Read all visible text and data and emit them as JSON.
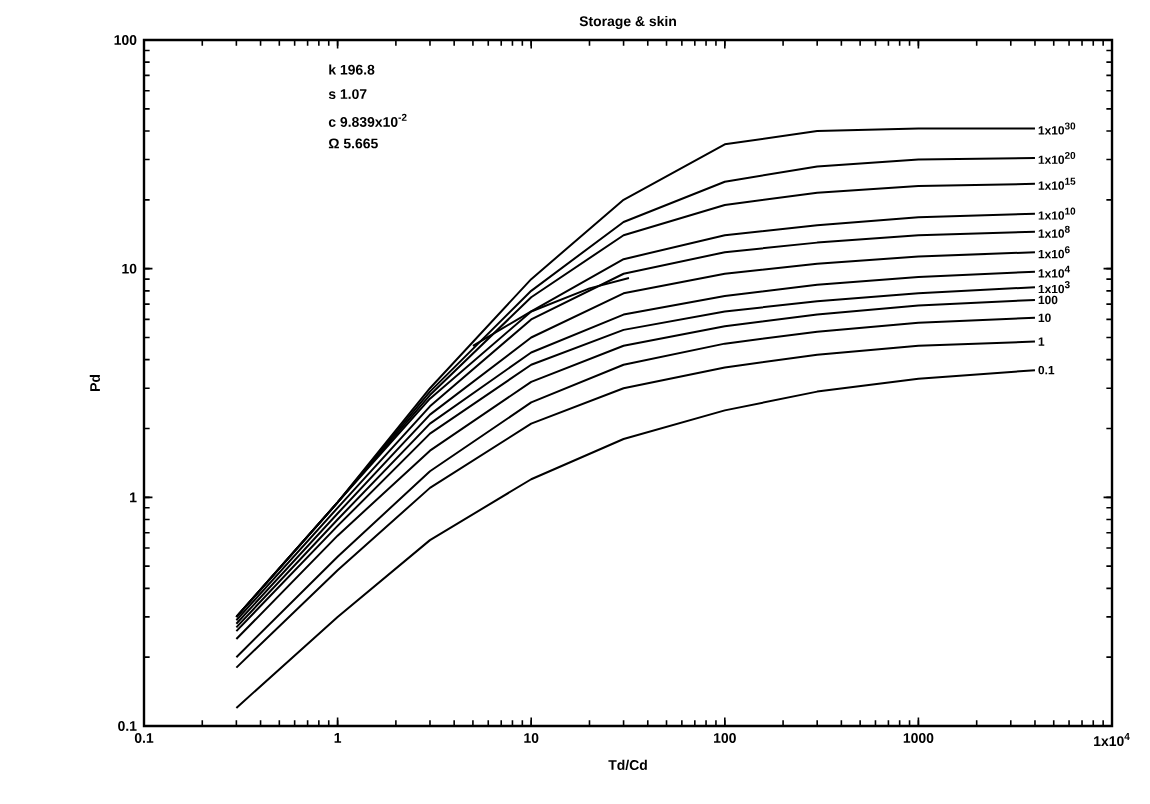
{
  "chart_data": {
    "type": "line",
    "title": "Storage & skin",
    "xlabel": "Td/Cd",
    "ylabel": "Pd",
    "log": "xy",
    "xlim": [
      0.1,
      10000
    ],
    "ylim": [
      0.1,
      100
    ],
    "xticks": [
      0.1,
      1,
      10,
      100,
      1000,
      {
        "value": 10000,
        "label": "1x10$^{4}$"
      }
    ],
    "yticks": [
      0.1,
      1,
      10,
      100
    ],
    "annotations": [
      "k 196.8",
      "s 1.07",
      "c 9.839x10$^{-2}$",
      "Ω 5.665"
    ],
    "legend": false,
    "grid": false,
    "marker": "none",
    "line_style": "solid",
    "x": [
      0.3,
      1,
      3,
      10,
      30,
      100,
      300,
      1000,
      4000
    ],
    "series": [
      {
        "name": "1x10$^{30}$",
        "color": "#000000",
        "values": [
          0.3,
          0.95,
          3,
          9,
          20,
          35,
          40,
          41,
          41
        ]
      },
      {
        "name": "1x10$^{20}$",
        "color": "#000000",
        "values": [
          0.3,
          0.95,
          2.9,
          8,
          16,
          24,
          28,
          30,
          30.5
        ]
      },
      {
        "name": "1x10$^{15}$",
        "color": "#000000",
        "values": [
          0.3,
          0.95,
          2.8,
          7.5,
          14,
          19,
          21.5,
          23,
          23.5
        ]
      },
      {
        "name": "1x10$^{10}$",
        "color": "#000000",
        "values": [
          0.3,
          0.95,
          2.7,
          6.5,
          11,
          14,
          15.5,
          16.8,
          17.4
        ]
      },
      {
        "name": "1x10$^{8}$",
        "color": "#000000",
        "values": [
          0.29,
          0.9,
          2.5,
          6,
          9.5,
          11.8,
          13,
          14,
          14.5
        ]
      },
      {
        "name": "1x10$^{6}$",
        "color": "#000000",
        "values": [
          0.28,
          0.85,
          2.3,
          5,
          7.8,
          9.5,
          10.5,
          11.3,
          11.8
        ]
      },
      {
        "name": "1x10$^{4}$",
        "color": "#000000",
        "values": [
          0.27,
          0.8,
          2.1,
          4.3,
          6.3,
          7.6,
          8.5,
          9.2,
          9.7
        ]
      },
      {
        "name": "1x10$^{3}$",
        "color": "#000000",
        "values": [
          0.26,
          0.75,
          1.9,
          3.8,
          5.4,
          6.5,
          7.2,
          7.8,
          8.3
        ]
      },
      {
        "name": "100",
        "color": "#000000",
        "values": [
          0.24,
          0.68,
          1.6,
          3.2,
          4.6,
          5.6,
          6.3,
          6.9,
          7.3
        ]
      },
      {
        "name": "10",
        "color": "#000000",
        "values": [
          0.2,
          0.55,
          1.3,
          2.6,
          3.8,
          4.7,
          5.3,
          5.8,
          6.1
        ]
      },
      {
        "name": "1",
        "color": "#000000",
        "values": [
          0.18,
          0.48,
          1.1,
          2.1,
          3.0,
          3.7,
          4.2,
          4.6,
          4.8
        ]
      },
      {
        "name": "0.1",
        "color": "#000000",
        "values": [
          0.12,
          0.3,
          0.65,
          1.2,
          1.8,
          2.4,
          2.9,
          3.3,
          3.6
        ]
      },
      {
        "color": "#000000",
        "x": [
          5,
          10,
          20,
          32
        ],
        "values": [
          4.6,
          6.5,
          8.2,
          9.1
        ]
      }
    ]
  }
}
